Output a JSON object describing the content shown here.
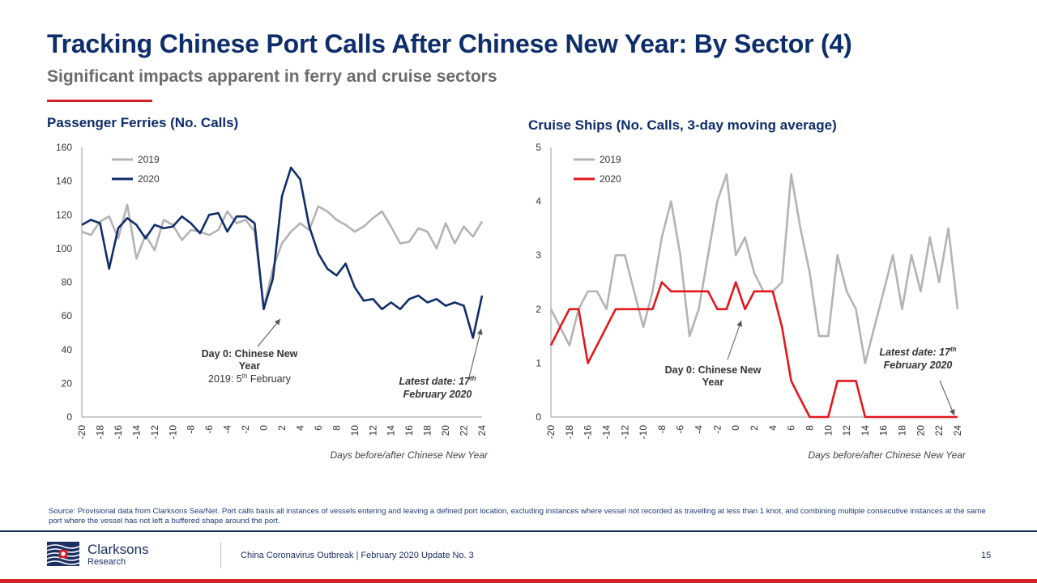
{
  "header": {
    "title": "Tracking Chinese Port Calls After Chinese New Year: By Sector (4)",
    "subtitle": "Significant impacts apparent in ferry and cruise sectors"
  },
  "colors": {
    "navy": "#0e2d6b",
    "red": "#d62027",
    "grey_2019": "#b3b3b3",
    "navy_2020": "#0e2d6b",
    "red_2020": "#e3161b"
  },
  "chart_data": [
    {
      "type": "line",
      "title": "Passenger Ferries (No. Calls)",
      "xlabel": "Days before/after Chinese New Year",
      "ylabel": "",
      "xlim": [
        -20,
        24
      ],
      "ylim": [
        0,
        160
      ],
      "yticks": [
        0,
        20,
        40,
        60,
        80,
        100,
        120,
        140,
        160
      ],
      "xticks": [
        "-20",
        "-18",
        "-16",
        "-14",
        "-12",
        "-10",
        "-8",
        "-6",
        "-4",
        "-2",
        "0",
        "2",
        "4",
        "6",
        "8",
        "10",
        "12",
        "14",
        "16",
        "18",
        "20",
        "22",
        "24"
      ],
      "legend": "top-left",
      "grid": false,
      "x": [
        -20,
        -19,
        -18,
        -17,
        -16,
        -15,
        -14,
        -13,
        -12,
        -11,
        -10,
        -9,
        -8,
        -7,
        -6,
        -5,
        -4,
        -3,
        -2,
        -1,
        0,
        1,
        2,
        3,
        4,
        5,
        6,
        7,
        8,
        9,
        10,
        11,
        12,
        13,
        14,
        15,
        16,
        17,
        18,
        19,
        20,
        21,
        22,
        23,
        24
      ],
      "series": [
        {
          "name": "2019",
          "values": [
            110,
            108,
            116,
            119,
            106,
            126,
            94,
            108,
            99,
            117,
            114,
            105,
            111,
            110,
            108,
            111,
            122,
            115,
            117,
            110,
            65,
            88,
            103,
            110,
            115,
            111,
            125,
            122,
            117,
            114,
            110,
            113,
            118,
            122,
            113,
            103,
            104,
            112,
            110,
            100,
            115,
            103,
            113,
            107,
            116
          ]
        },
        {
          "name": "2020",
          "values": [
            114,
            117,
            115,
            88,
            112,
            118,
            114,
            106,
            114,
            112,
            113,
            119,
            115,
            109,
            120,
            121,
            110,
            119,
            119,
            115,
            64,
            82,
            131,
            148,
            141,
            113,
            97,
            88,
            84,
            91,
            77,
            69,
            70,
            64,
            68,
            64,
            70,
            72,
            68,
            70,
            66,
            68,
            66,
            47,
            72
          ]
        }
      ],
      "annotations": {
        "day0_line1": "Day 0: Chinese New",
        "day0_line2": "Year",
        "day0_2019_prefix": "2019: 5",
        "day0_2019_sup": "th",
        "day0_2019_suffix": " February",
        "latest_line1": "Latest date: 17",
        "latest_sup": "th",
        "latest_line2": "February 2020"
      }
    },
    {
      "type": "line",
      "title": "Cruise Ships (No. Calls, 3-day moving average)",
      "xlabel": "Days before/after Chinese New Year",
      "ylabel": "",
      "xlim": [
        -20,
        24
      ],
      "ylim": [
        0,
        5
      ],
      "yticks": [
        0,
        1,
        2,
        3,
        4,
        5
      ],
      "xticks": [
        "-20",
        "-18",
        "-16",
        "-14",
        "-12",
        "-10",
        "-8",
        "-6",
        "-4",
        "-2",
        "0",
        "2",
        "4",
        "6",
        "8",
        "10",
        "12",
        "14",
        "16",
        "18",
        "20",
        "22",
        "24"
      ],
      "legend": "top-left",
      "grid": false,
      "x": [
        -20,
        -19,
        -18,
        -17,
        -16,
        -15,
        -14,
        -13,
        -12,
        -11,
        -10,
        -9,
        -8,
        -7,
        -6,
        -5,
        -4,
        -3,
        -2,
        -1,
        0,
        1,
        2,
        3,
        4,
        5,
        6,
        7,
        8,
        9,
        10,
        11,
        12,
        13,
        14,
        15,
        16,
        17,
        18,
        19,
        20,
        21,
        22,
        23,
        24
      ],
      "series": [
        {
          "name": "2019",
          "values": [
            2.0,
            1.67,
            1.33,
            2.0,
            2.33,
            2.33,
            2.0,
            3.0,
            3.0,
            2.33,
            1.67,
            2.33,
            3.33,
            4.0,
            3.0,
            1.5,
            2.0,
            3.0,
            4.0,
            4.5,
            3.0,
            3.33,
            2.67,
            2.33,
            2.33,
            2.5,
            4.5,
            3.5,
            2.67,
            1.5,
            1.5,
            3.0,
            2.33,
            2.0,
            1.0,
            1.67,
            2.33,
            3.0,
            2.0,
            3.0,
            2.33,
            3.33,
            2.5,
            3.5,
            2.0
          ]
        },
        {
          "name": "2020",
          "values": [
            1.33,
            1.67,
            2.0,
            2.0,
            1.0,
            1.33,
            1.67,
            2.0,
            2.0,
            2.0,
            2.0,
            2.0,
            2.5,
            2.33,
            2.33,
            2.33,
            2.33,
            2.33,
            2.0,
            2.0,
            2.5,
            2.0,
            2.33,
            2.33,
            2.33,
            1.67,
            0.67,
            0.33,
            0,
            0,
            0,
            0.67,
            0.67,
            0.67,
            0,
            0,
            0,
            0,
            0,
            0,
            0,
            0,
            0,
            0,
            0
          ]
        }
      ],
      "annotations": {
        "day0_line1": "Day 0: Chinese New",
        "day0_line2": "Year",
        "latest_line1": "Latest date: 17",
        "latest_sup": "th",
        "latest_line2": "February 2020"
      }
    }
  ],
  "footer": {
    "source": "Source: Provisional data from Clarksons Sea/Net. Port calls basis all instances of vessels entering and leaving a defined port location, excluding instances where vessel not recorded as travelling at less than 1 knot, and combining multiple consecutive instances at the same port where the vessel has not left a buffered shape around the port.",
    "brand_name": "Clarksons",
    "brand_sub": "Research",
    "report_label": "China Coronavirus Outbreak | February 2020 Update No. 3",
    "page_number": "15",
    "logo_icon": "clarksons-flag-logo-icon"
  }
}
